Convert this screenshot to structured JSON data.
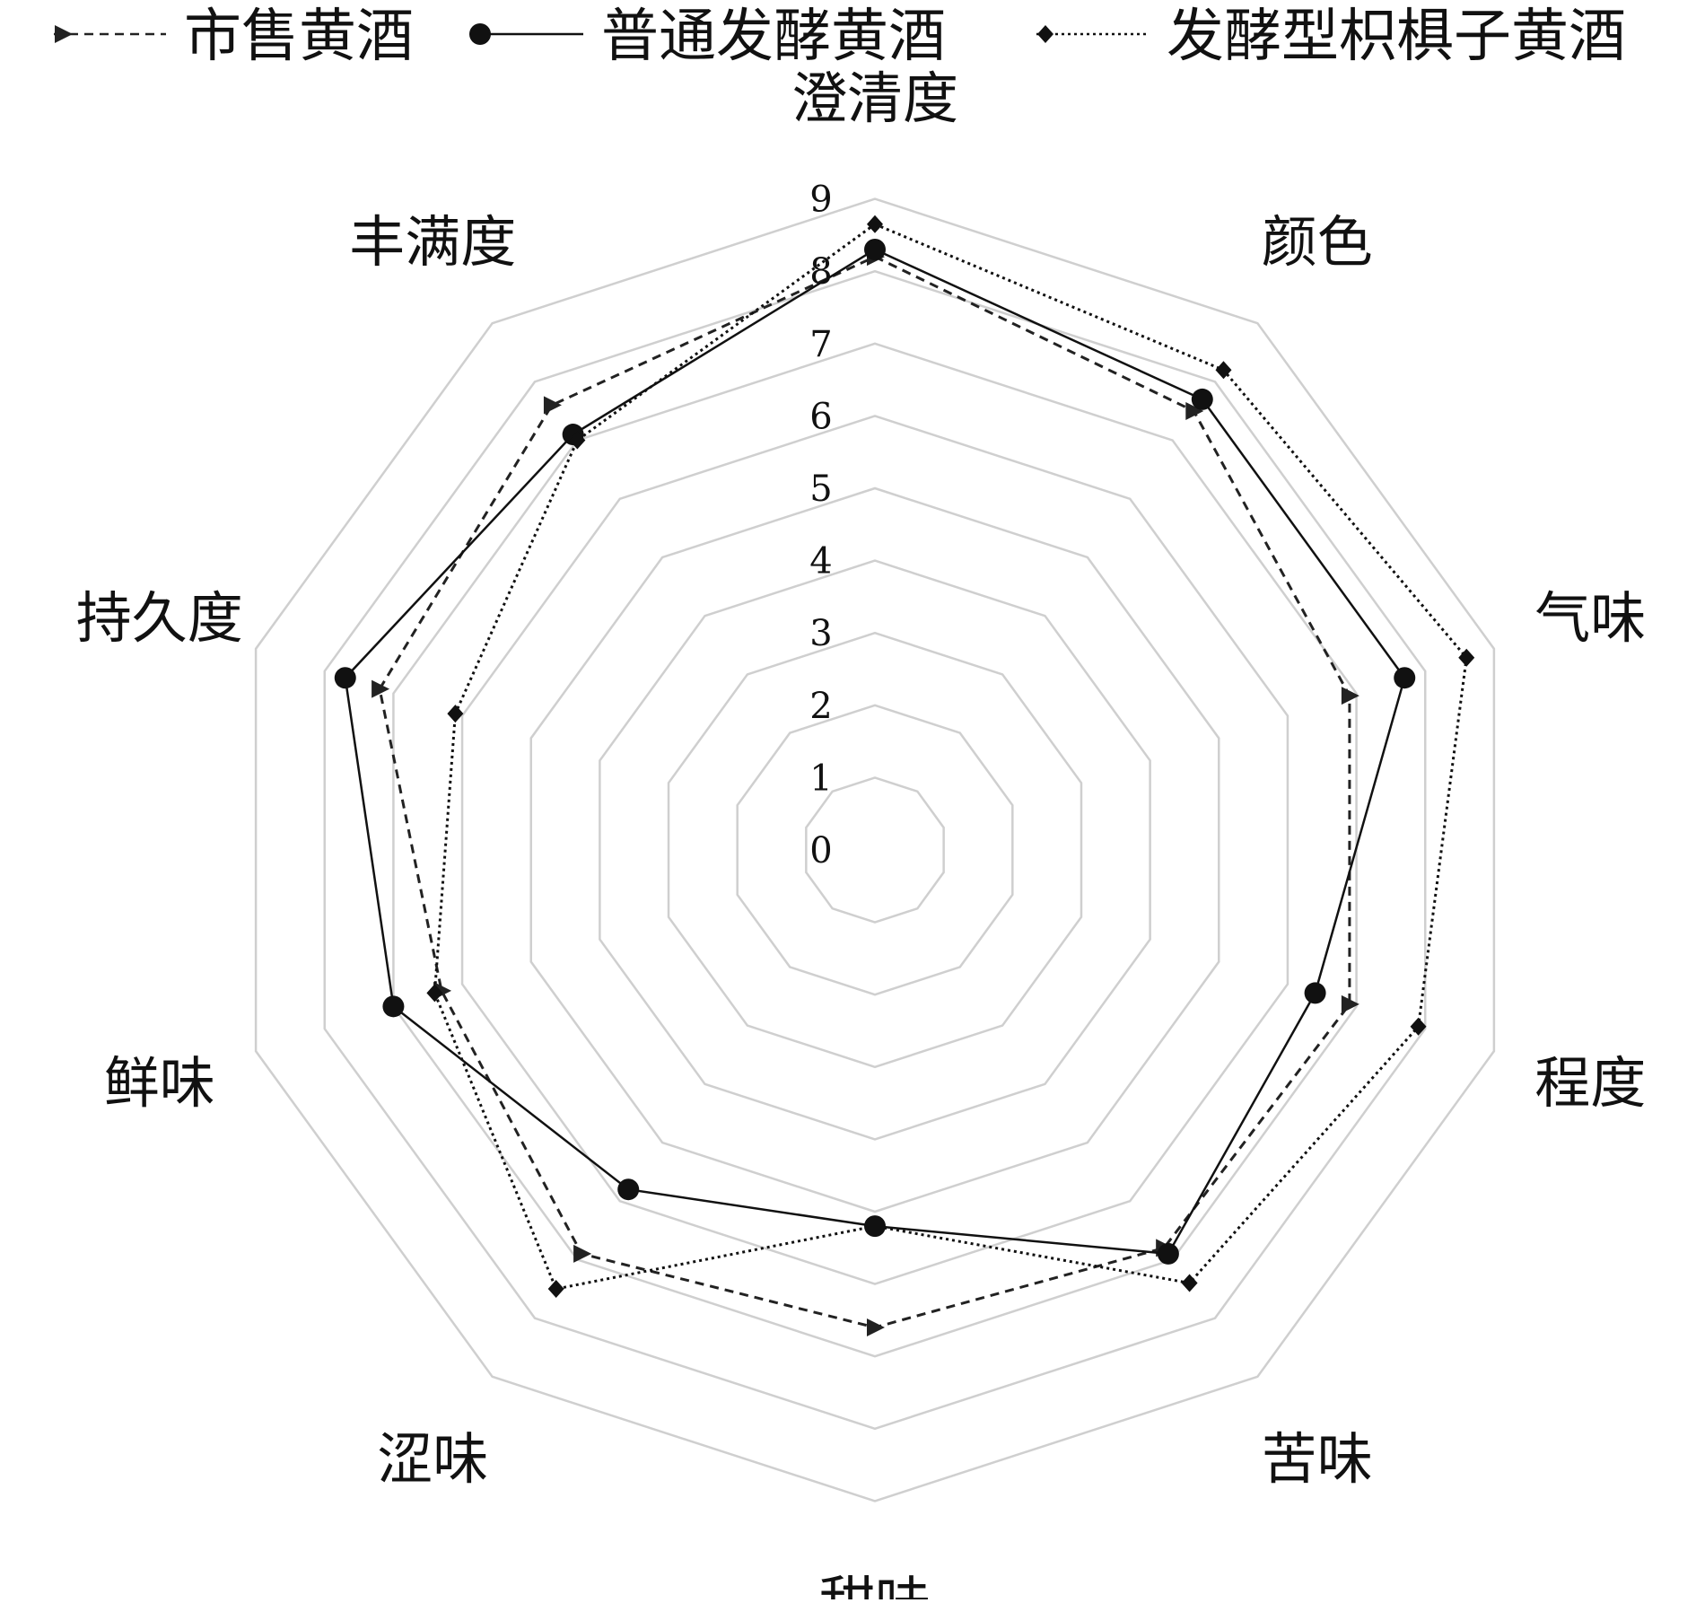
{
  "chart_data": {
    "type": "radar",
    "title": "",
    "axes": [
      "澄清度",
      "颜色",
      "气味",
      "程度",
      "苦味",
      "甜味",
      "涩味",
      "鲜味",
      "持久度",
      "丰满度"
    ],
    "rlim": [
      0,
      9
    ],
    "ticks": [
      "0",
      "1",
      "2",
      "3",
      "4",
      "5",
      "6",
      "7",
      "8",
      "9"
    ],
    "grid": true,
    "legend_position": "top",
    "series": [
      {
        "name": "市售黄酒",
        "marker": "triangle",
        "line": "dashed",
        "color": "#222222",
        "values": [
          8.2,
          7.5,
          6.9,
          6.9,
          6.8,
          6.6,
          6.9,
          6.3,
          7.2,
          7.6
        ]
      },
      {
        "name": "普通发酵黄酒",
        "marker": "circle",
        "line": "solid",
        "color": "#111111",
        "values": [
          8.3,
          7.7,
          7.7,
          6.4,
          6.9,
          5.2,
          5.8,
          7.0,
          7.7,
          7.1
        ]
      },
      {
        "name": "发酵型枳椇子黄酒",
        "marker": "diamond",
        "line": "dotted",
        "color": "#111111",
        "values": [
          8.65,
          8.2,
          8.6,
          7.9,
          7.4,
          5.2,
          7.5,
          6.4,
          6.1,
          7.0
        ]
      }
    ]
  }
}
